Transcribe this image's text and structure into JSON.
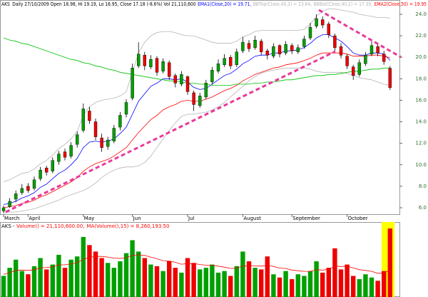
{
  "chart_data": [
    {
      "type": "candlestick",
      "title": "AKS",
      "subtitle": "Daily 27/10/2009 Open 18.98, Hi 19.19, Lo 16.95, Close 17.18 (-8.6%) Vol 21,110,600",
      "categories": [
        "March",
        null,
        null,
        null,
        "April",
        null,
        null,
        null,
        null,
        null,
        null,
        null,
        null,
        "May",
        null,
        null,
        null,
        null,
        null,
        null,
        null,
        "Jun",
        null,
        null,
        null,
        null,
        null,
        null,
        null,
        null,
        "Jul",
        null,
        null,
        null,
        null,
        null,
        null,
        null,
        null,
        "August",
        null,
        null,
        null,
        null,
        null,
        null,
        null,
        "September",
        null,
        null,
        null,
        null,
        null,
        null,
        null,
        null,
        "October",
        null,
        null,
        null,
        null,
        null,
        null,
        null
      ],
      "open": [
        5.7,
        6.1,
        6.8,
        7.4,
        8.0,
        7.8,
        8.7,
        9.7,
        9.4,
        10.3,
        11.2,
        10.8,
        11.9,
        13.2,
        15.0,
        14.0,
        12.5,
        11.7,
        12.2,
        13.5,
        14.7,
        16.2,
        19.2,
        20.2,
        19.1,
        19.9,
        18.7,
        19.5,
        18.3,
        17.5,
        18.2,
        16.7,
        15.5,
        16.3,
        17.7,
        18.7,
        19.3,
        20.0,
        19.3,
        20.6,
        21.3,
        20.9,
        21.5,
        20.6,
        20.1,
        21.1,
        20.4,
        21.1,
        20.5,
        21.0,
        21.8,
        22.9,
        23.5,
        23.1,
        22.0,
        21.0,
        20.1,
        19.1,
        18.4,
        19.4,
        20.3,
        21.0,
        20.3,
        18.98
      ],
      "high": [
        6.2,
        6.9,
        7.6,
        8.2,
        8.3,
        8.9,
        9.8,
        9.9,
        10.7,
        11.3,
        11.5,
        12.1,
        13.1,
        15.7,
        15.4,
        14.3,
        12.9,
        12.6,
        13.7,
        14.9,
        16.1,
        19.4,
        21.4,
        20.5,
        20.2,
        20.1,
        19.9,
        19.7,
        18.5,
        18.7,
        18.3,
        16.9,
        16.7,
        17.9,
        19.1,
        19.8,
        20.3,
        20.2,
        20.8,
        21.9,
        21.6,
        22.0,
        21.7,
        20.8,
        21.3,
        21.2,
        21.5,
        21.3,
        21.2,
        22.0,
        23.2,
        24.0,
        23.8,
        23.3,
        22.2,
        21.3,
        20.3,
        19.3,
        19.8,
        20.5,
        21.5,
        21.2,
        20.6,
        19.19
      ],
      "low": [
        5.5,
        6.0,
        6.5,
        7.2,
        7.4,
        7.6,
        8.5,
        9.0,
        9.2,
        10.0,
        10.4,
        10.6,
        11.6,
        13.0,
        13.8,
        12.3,
        11.2,
        11.4,
        12.0,
        13.2,
        14.4,
        16.0,
        19.0,
        18.8,
        18.9,
        18.3,
        18.5,
        17.9,
        17.2,
        17.3,
        16.5,
        15.0,
        15.3,
        16.1,
        17.5,
        18.5,
        19.1,
        18.9,
        19.1,
        20.4,
        20.5,
        20.7,
        20.2,
        19.8,
        19.9,
        20.0,
        20.2,
        20.3,
        20.3,
        20.8,
        21.6,
        22.7,
        22.7,
        21.8,
        20.6,
        19.9,
        18.9,
        17.9,
        18.2,
        19.2,
        20.1,
        20.1,
        19.3,
        16.95
      ],
      "close": [
        6.0,
        6.6,
        7.3,
        7.8,
        7.6,
        8.6,
        9.5,
        9.3,
        10.4,
        11.0,
        10.7,
        11.8,
        12.8,
        15.2,
        14.1,
        12.6,
        11.6,
        12.3,
        13.4,
        14.6,
        15.8,
        19.0,
        20.3,
        19.2,
        19.8,
        18.6,
        19.6,
        18.2,
        17.6,
        18.4,
        16.8,
        15.6,
        16.4,
        17.6,
        18.8,
        19.4,
        19.9,
        19.2,
        20.5,
        21.4,
        20.8,
        21.6,
        20.5,
        20.2,
        21.0,
        20.3,
        21.2,
        20.6,
        20.9,
        21.7,
        22.8,
        23.6,
        23.0,
        22.1,
        20.9,
        20.2,
        19.2,
        18.3,
        19.5,
        20.2,
        21.1,
        20.4,
        19.6,
        17.18
      ],
      "up_color": "#00a000",
      "down_color": "#ee0000",
      "series": [
        {
          "name": "EMA1(Close,20) = 19.71,",
          "color": "#0000ff",
          "values": [
            6.3,
            6.4,
            6.6,
            6.9,
            7.1,
            7.4,
            7.9,
            8.2,
            8.7,
            9.2,
            9.5,
            10.0,
            10.6,
            11.6,
            12.1,
            12.2,
            12.1,
            12.2,
            12.4,
            12.9,
            13.5,
            14.7,
            15.9,
            16.6,
            17.3,
            17.6,
            18.0,
            18.0,
            17.9,
            18.0,
            17.7,
            17.2,
            17.0,
            17.1,
            17.5,
            17.9,
            18.3,
            18.5,
            18.9,
            19.4,
            19.7,
            20.1,
            20.2,
            20.2,
            20.4,
            20.4,
            20.6,
            20.6,
            20.7,
            20.9,
            21.3,
            21.8,
            22.1,
            22.1,
            21.8,
            21.5,
            21.0,
            20.4,
            20.2,
            20.2,
            20.4,
            20.4,
            20.3,
            19.71
          ]
        },
        {
          "name": "BBTop(Close,40,2) = 23.64,",
          "color": "#b4b4b4",
          "values": [
            8.4,
            8.6,
            8.9,
            9.2,
            9.3,
            9.6,
            10.1,
            10.4,
            10.9,
            11.5,
            11.9,
            12.4,
            13.1,
            14.6,
            15.4,
            15.8,
            16.0,
            16.1,
            16.2,
            16.4,
            16.8,
            18.6,
            20.4,
            21.4,
            22.0,
            22.3,
            22.4,
            22.4,
            22.3,
            22.1,
            22.0,
            22.0,
            21.8,
            21.6,
            21.4,
            21.3,
            21.3,
            21.3,
            21.5,
            21.9,
            22.1,
            22.4,
            22.5,
            22.5,
            22.5,
            22.5,
            22.5,
            22.5,
            22.5,
            22.6,
            23.1,
            23.8,
            24.3,
            24.5,
            24.5,
            24.4,
            24.3,
            24.2,
            24.0,
            23.9,
            23.8,
            23.7,
            23.7,
            23.64
          ]
        },
        {
          "name": "BBBot(Close,40,2) = 17.39,",
          "color": "#b4b4b4",
          "values": [
            5.5,
            5.6,
            5.6,
            5.7,
            5.8,
            5.9,
            6.1,
            6.3,
            6.5,
            6.7,
            7.0,
            7.2,
            7.4,
            7.6,
            7.9,
            8.3,
            8.8,
            9.2,
            9.5,
            9.7,
            9.8,
            9.8,
            9.9,
            10.2,
            10.8,
            11.6,
            12.4,
            13.2,
            13.9,
            14.5,
            14.7,
            14.7,
            14.8,
            14.9,
            15.1,
            15.4,
            15.8,
            16.3,
            16.8,
            17.3,
            17.8,
            18.2,
            18.5,
            18.7,
            18.8,
            18.9,
            19.0,
            19.0,
            19.0,
            19.0,
            18.9,
            18.7,
            18.6,
            18.6,
            18.6,
            18.6,
            18.5,
            18.3,
            18.1,
            18.0,
            17.9,
            17.7,
            17.5,
            17.39
          ]
        },
        {
          "name": "EMA2(Close,50) = 19.95",
          "color": "#ff0000",
          "values": [
            6.0,
            6.1,
            6.2,
            6.4,
            6.5,
            6.7,
            7.0,
            7.2,
            7.5,
            7.8,
            8.1,
            8.4,
            8.8,
            9.4,
            9.8,
            10.1,
            10.3,
            10.5,
            10.8,
            11.2,
            11.6,
            12.3,
            13.0,
            13.6,
            14.2,
            14.6,
            15.1,
            15.4,
            15.6,
            15.9,
            16.0,
            15.9,
            15.9,
            16.1,
            16.3,
            16.6,
            16.9,
            17.1,
            17.4,
            17.8,
            18.1,
            18.4,
            18.6,
            18.8,
            19.0,
            19.1,
            19.3,
            19.4,
            19.5,
            19.7,
            19.9,
            20.2,
            20.4,
            20.4,
            20.4,
            20.4,
            20.3,
            20.1,
            20.1,
            20.1,
            20.2,
            20.2,
            20.1,
            19.95
          ]
        },
        {
          "color": "#00c000",
          "values": [
            21.8,
            21.6,
            21.5,
            21.3,
            21.2,
            21.0,
            20.8,
            20.6,
            20.4,
            20.2,
            20.0,
            19.8,
            19.7,
            19.5,
            19.4,
            19.2,
            19.1,
            18.9,
            18.8,
            18.6,
            18.5,
            18.4,
            18.3,
            18.2,
            18.1,
            18.0,
            17.9,
            17.8,
            17.8,
            17.7,
            17.6,
            17.6,
            17.5,
            17.5,
            17.4,
            17.4,
            17.4,
            17.4,
            17.5,
            17.5,
            17.5,
            17.6,
            17.6,
            17.7,
            17.7,
            17.8,
            17.9,
            17.9,
            18.0,
            18.1,
            18.2,
            18.3,
            18.3,
            18.4,
            18.4,
            18.5,
            18.6,
            18.7,
            18.7,
            18.8,
            18.9,
            18.9,
            19.0,
            19.0
          ]
        }
      ],
      "ylim": [
        5.4,
        25.33
      ],
      "yticks": [
        {
          "value": 6,
          "label": "6.0"
        },
        {
          "value": 8,
          "label": "8.0"
        },
        {
          "value": 10,
          "label": "10.0"
        },
        {
          "value": 12,
          "label": "12.0"
        },
        {
          "value": 14,
          "label": "14.0"
        },
        {
          "value": 16,
          "label": "16.0"
        },
        {
          "value": 18,
          "label": "18.0"
        },
        {
          "value": 20,
          "label": "20.0"
        },
        {
          "value": 22,
          "label": "22.0"
        },
        {
          "value": 24,
          "label": "24.0"
        }
      ],
      "grid": false
    },
    {
      "type": "bar",
      "title": "AKS -",
      "values": [
        6500000,
        9000000,
        11500000,
        8000000,
        7000000,
        9500000,
        12000000,
        8500000,
        10000000,
        13000000,
        9000000,
        11500000,
        12500000,
        18500000,
        16000000,
        14000000,
        12000000,
        10500000,
        9000000,
        11000000,
        13500000,
        17500000,
        14000000,
        12000000,
        10000000,
        9500000,
        8000000,
        11000000,
        9000000,
        7500000,
        12000000,
        10500000,
        8500000,
        9000000,
        10000000,
        7500000,
        8000000,
        6500000,
        9500000,
        14000000,
        11000000,
        9000000,
        8500000,
        12500000,
        7000000,
        6000000,
        8000000,
        5500000,
        7000000,
        6500000,
        8000000,
        11000000,
        7500000,
        9000000,
        15000000,
        8500000,
        10000000,
        6500000,
        5500000,
        7000000,
        6000000,
        5000000,
        8000000,
        21110600
      ],
      "name": "Volume() = 21,110,600.00,",
      "color": "#ff0000",
      "series": [
        {
          "name": "MA(Volume(),15) = 8,260,193.50",
          "color": "#ff0000",
          "values": [
            7000000,
            7500000,
            8200000,
            8300000,
            8200000,
            8400000,
            9000000,
            9100000,
            9300000,
            9900000,
            9900000,
            10200000,
            10600000,
            11600000,
            12200000,
            12500000,
            12500000,
            12300000,
            12000000,
            11900000,
            12100000,
            12800000,
            13000000,
            12800000,
            12300000,
            11800000,
            11200000,
            11100000,
            10700000,
            10100000,
            10300000,
            10300000,
            10000000,
            9800000,
            9800000,
            9500000,
            9200000,
            8800000,
            8900000,
            9500000,
            9700000,
            9600000,
            9500000,
            9800000,
            9400000,
            8900000,
            8800000,
            8300000,
            8100000,
            7900000,
            7900000,
            8400000,
            8300000,
            8500000,
            9500000,
            9400000,
            9500000,
            9000000,
            8400000,
            8200000,
            7900000,
            7300000,
            7400000,
            8260193.5
          ]
        }
      ],
      "ylim": [
        0,
        22000000
      ]
    }
  ]
}
